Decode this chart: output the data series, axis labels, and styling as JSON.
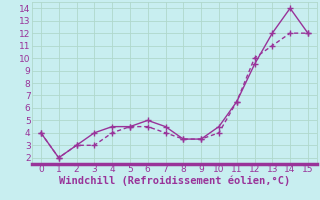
{
  "line1_x": [
    0,
    1,
    2,
    3,
    4,
    5,
    6,
    7,
    8,
    9,
    10,
    11,
    12,
    13,
    14,
    15
  ],
  "line1_y": [
    4.0,
    2.0,
    3.0,
    4.0,
    4.5,
    4.5,
    5.0,
    4.5,
    3.5,
    3.5,
    4.5,
    6.5,
    9.5,
    12.0,
    14.0,
    12.0
  ],
  "line2_x": [
    0,
    1,
    2,
    3,
    4,
    5,
    6,
    7,
    8,
    9,
    10,
    11,
    12,
    13,
    14,
    15
  ],
  "line2_y": [
    4.0,
    2.0,
    3.0,
    3.0,
    4.0,
    4.5,
    4.5,
    4.0,
    3.5,
    3.5,
    4.0,
    6.5,
    10.0,
    11.0,
    12.0,
    12.0
  ],
  "color": "#993399",
  "bg_color": "#c8eef0",
  "grid_color": "#b0d8cc",
  "xlabel": "Windchill (Refroidissement éolien,°C)",
  "xlabel_color": "#993399",
  "xlim": [
    -0.5,
    15.5
  ],
  "ylim": [
    1.5,
    14.5
  ],
  "xticks": [
    0,
    1,
    2,
    3,
    4,
    5,
    6,
    7,
    8,
    9,
    10,
    11,
    12,
    13,
    14,
    15
  ],
  "yticks": [
    2,
    3,
    4,
    5,
    6,
    7,
    8,
    9,
    10,
    11,
    12,
    13,
    14
  ],
  "marker": "+",
  "markersize": 4,
  "linewidth": 1.0,
  "tick_fontsize": 6.5,
  "xlabel_fontsize": 7.5,
  "bottom_spine_color": "#993399",
  "bottom_spine_width": 2.5
}
